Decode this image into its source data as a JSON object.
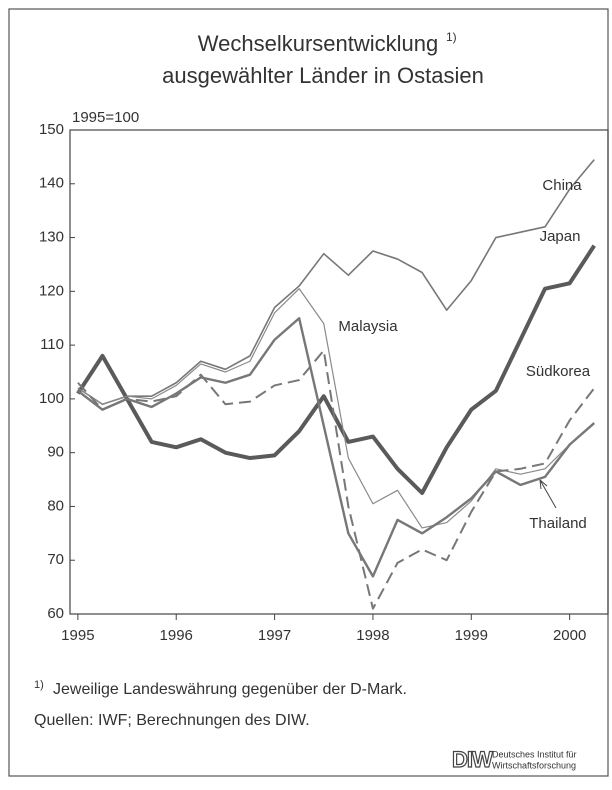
{
  "chart_data": {
    "type": "line",
    "title": [
      "Wechselkursentwicklung",
      "ausgewählter Länder in Ostasien"
    ],
    "title_note": "1)",
    "y_label": "1995=100",
    "x": [
      1995,
      1995.25,
      1995.5,
      1995.75,
      1996,
      1996.25,
      1996.5,
      1996.75,
      1997,
      1997.25,
      1997.5,
      1997.75,
      1998,
      1998.25,
      1998.5,
      1998.75,
      1999,
      1999.25,
      1999.5,
      1999.75,
      2000,
      2000.25
    ],
    "series": [
      {
        "name": "China",
        "color": "#777777",
        "width": 1.6,
        "dash": false,
        "values": [
          102,
          99,
          100.5,
          100.5,
          103,
          107,
          105.5,
          108,
          117,
          121,
          127,
          123,
          127.5,
          126,
          123.5,
          116.5,
          122,
          130,
          131,
          132,
          139,
          144.5
        ]
      },
      {
        "name": "Japan",
        "color": "#5a5a5a",
        "width": 4,
        "dash": false,
        "values": [
          101,
          108,
          100,
          92,
          91,
          92.5,
          90,
          89,
          89.5,
          94,
          100.5,
          92,
          93,
          87,
          82.5,
          91,
          98,
          101.5,
          111,
          120.5,
          121.5,
          128.5
        ]
      },
      {
        "name": "Malaysia",
        "color": "#8a8a8a",
        "width": 1.2,
        "dash": false,
        "values": [
          102,
          99,
          100.5,
          100,
          102.5,
          106.5,
          105,
          107,
          116,
          120.5,
          114,
          89,
          80.5,
          83,
          76,
          77,
          81,
          87,
          86,
          87,
          91.5,
          95.5
        ]
      },
      {
        "name": "Südkorea",
        "color": "#777777",
        "width": 2.4,
        "dash": false,
        "values": [
          101.5,
          98,
          100,
          98.5,
          101,
          104,
          103,
          104.5,
          111,
          115,
          95,
          75,
          67,
          77.5,
          75,
          78,
          81.5,
          86.5,
          84,
          85.5,
          91.5,
          95.5
        ]
      },
      {
        "name": "Thailand",
        "color": "#777777",
        "width": 2,
        "dash": true,
        "values": [
          103,
          98,
          100,
          99.5,
          100.5,
          104.5,
          99,
          99.5,
          102.5,
          103.5,
          109,
          80,
          61,
          69.5,
          72,
          70,
          79,
          86.5,
          87,
          88,
          96,
          102
        ]
      }
    ],
    "xlim": [
      1994.92,
      2000.39
    ],
    "xticks": [
      1995,
      1996,
      1997,
      1998,
      1999,
      2000
    ],
    "ylim": [
      60,
      150
    ],
    "yticks": [
      60,
      70,
      80,
      90,
      100,
      110,
      120,
      130,
      140,
      150
    ],
    "footnote": {
      "marker": "1)",
      "text": "Jeweilige Landeswährung gegenüber der D-Mark."
    },
    "source": "Quellen: IWF; Berechnungen des DIW.",
    "logo": {
      "mark": "DIW",
      "lines": [
        "Deutsches Institut für",
        "Wirtschaftsforschung"
      ]
    }
  }
}
